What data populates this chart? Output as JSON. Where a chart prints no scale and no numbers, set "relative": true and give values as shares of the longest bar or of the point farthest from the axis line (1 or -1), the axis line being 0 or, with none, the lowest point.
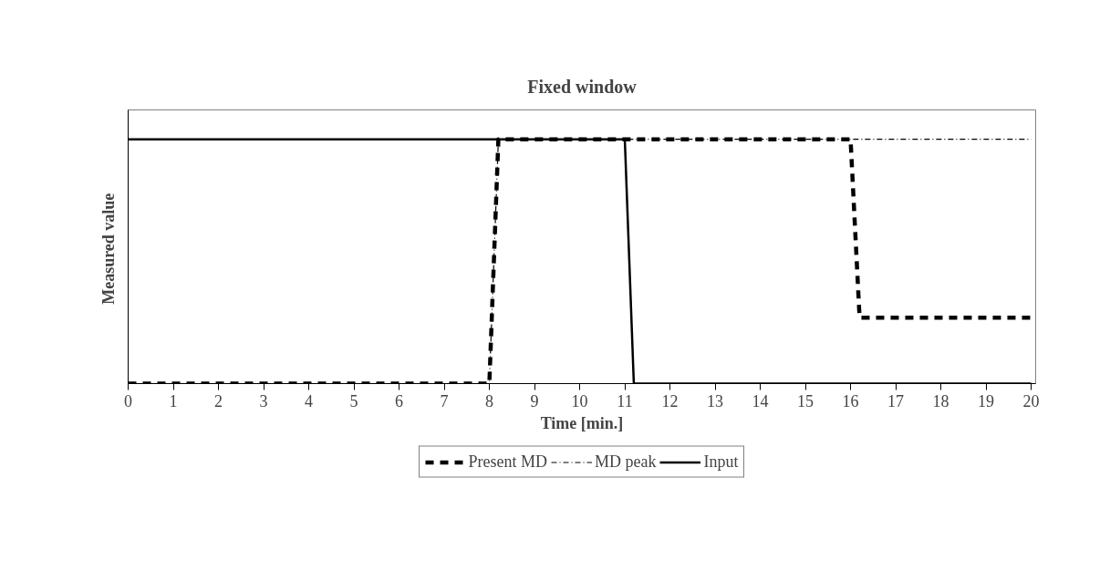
{
  "chart_data": {
    "type": "line",
    "title": "Fixed window",
    "xlabel": "Time [min.]",
    "ylabel": "Measured  value",
    "relative": true,
    "xlim": [
      0,
      20.1
    ],
    "xticks": [
      0,
      1,
      2,
      3,
      4,
      5,
      6,
      7,
      8,
      9,
      10,
      11,
      12,
      13,
      14,
      15,
      16,
      17,
      18,
      19,
      20
    ],
    "legend": "bottom",
    "series": [
      {
        "name": "Present MD",
        "color": "#000000",
        "line_style": "dashed",
        "x": [
          0,
          8,
          8.2,
          16,
          16.2,
          20
        ],
        "values": [
          0,
          0,
          1,
          1,
          0.27,
          0.27
        ]
      },
      {
        "name": "MD peak",
        "color": "#000000",
        "line_style": "dashdot",
        "x": [
          0,
          8,
          8.2,
          20
        ],
        "values": [
          0,
          0,
          1,
          1
        ]
      },
      {
        "name": "Input",
        "color": "#000000",
        "line_style": "solid",
        "x": [
          0,
          11,
          11.2,
          20
        ],
        "values": [
          1,
          1,
          0,
          0
        ]
      }
    ]
  }
}
